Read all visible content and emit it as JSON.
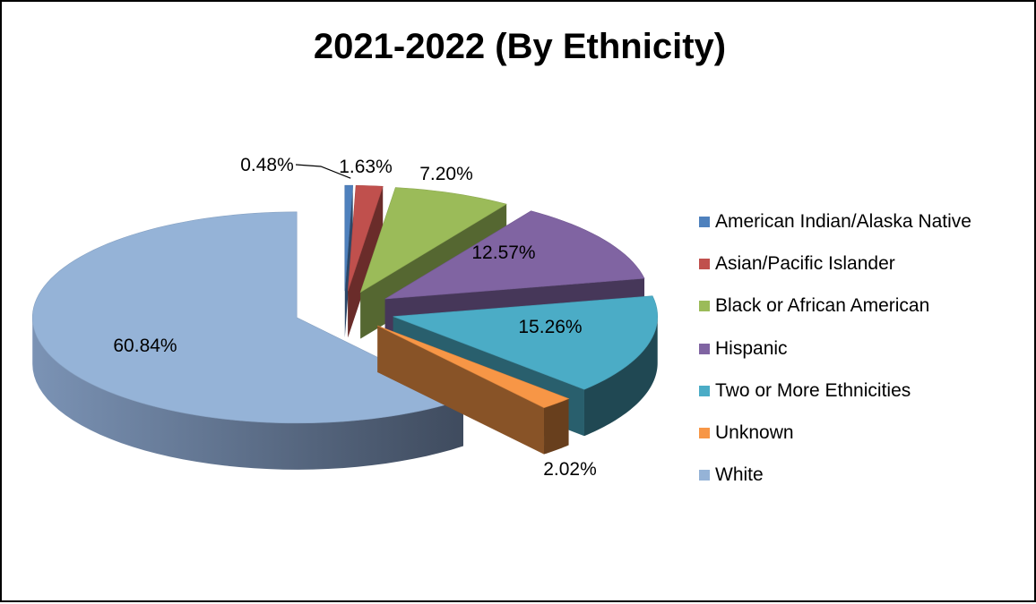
{
  "chart_data": {
    "type": "pie",
    "title": "2021-2022 (By Ethnicity)",
    "legend_position": "right",
    "value_format": "percent",
    "slices": [
      {
        "name": "American Indian/Alaska Native",
        "value": 0.48,
        "label": "0.48%",
        "color": "#4f81bd"
      },
      {
        "name": "Asian/Pacific Islander",
        "value": 1.63,
        "label": "1.63%",
        "color": "#c0504d"
      },
      {
        "name": "Black or African American",
        "value": 7.2,
        "label": "7.20%",
        "color": "#9bbb59"
      },
      {
        "name": "Hispanic",
        "value": 12.57,
        "label": "12.57%",
        "color": "#8064a2"
      },
      {
        "name": "Two or More Ethnicities",
        "value": 15.26,
        "label": "15.26%",
        "color": "#4bacc6"
      },
      {
        "name": "Unknown",
        "value": 2.02,
        "label": "2.02%",
        "color": "#f79646"
      },
      {
        "name": "White",
        "value": 60.84,
        "label": "60.84%",
        "color": "#95b3d7"
      }
    ]
  }
}
